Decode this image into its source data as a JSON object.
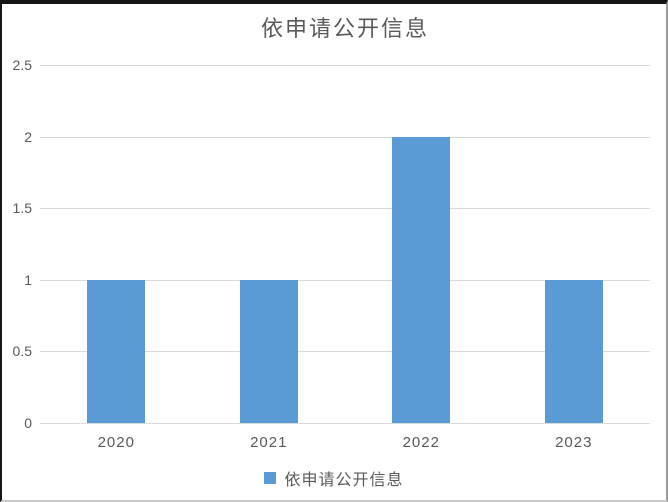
{
  "chart_data": {
    "type": "bar",
    "title": "依申请公开信息",
    "categories": [
      "2020",
      "2021",
      "2022",
      "2023"
    ],
    "series": [
      {
        "name": "依申请公开信息",
        "values": [
          1,
          1,
          2,
          1
        ]
      }
    ],
    "ylim": [
      0,
      2.5
    ],
    "yticks": [
      0,
      0.5,
      1,
      1.5,
      2,
      2.5
    ],
    "ytick_labels": [
      "0",
      "0.5",
      "1",
      "1.5",
      "2",
      "2.5"
    ],
    "xlabel": "",
    "ylabel": "",
    "grid": true,
    "legend_position": "bottom",
    "colors": {
      "bar": "#5b9bd5",
      "gridline": "#d9d9d9",
      "text": "#595959",
      "title": "#595959"
    }
  },
  "legend": {
    "label": "依申请公开信息"
  }
}
